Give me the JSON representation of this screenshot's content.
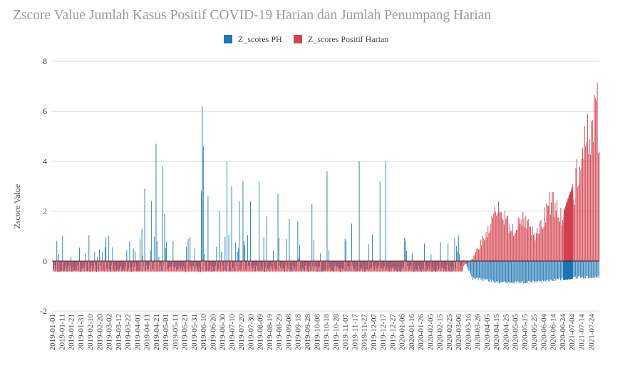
{
  "chart_data": {
    "type": "bar",
    "title": "Zscore Value Jumlah Kasus Positif COVID-19 Harian dan Jumlah Penumpang Harian",
    "xlabel": "",
    "ylabel": "Zscore Value",
    "ylim": [
      -2,
      8
    ],
    "yticks": [
      -2,
      0,
      2,
      4,
      6,
      8
    ],
    "grid": true,
    "legend_position": "top-center",
    "x_start": "2019-01-01",
    "x_end": "2021-07-31",
    "x_tick_labels": [
      "2019-01-01",
      "2019-01-11",
      "2019-01-21",
      "2019-01-31",
      "2019-02-10",
      "2019-02-20",
      "2019-03-02",
      "2019-03-12",
      "2019-03-22",
      "2019-04-01",
      "2019-04-11",
      "2019-04-21",
      "2019-05-01",
      "2019-05-11",
      "2019-05-21",
      "2019-05-31",
      "2019-06-10",
      "2019-06-20",
      "2019-06-30",
      "2019-07-10",
      "2019-07-20",
      "2019-07-30",
      "2019-08-09",
      "2019-08-19",
      "2019-08-29",
      "2019-09-08",
      "2019-09-18",
      "2019-09-28",
      "2019-10-08",
      "2019-10-18",
      "2019-10-28",
      "2019-11-07",
      "2019-11-17",
      "2019-11-27",
      "2019-12-07",
      "2019-12-17",
      "2019-12-27",
      "2020-01-06",
      "2020-01-16",
      "2020-01-26",
      "2020-02-05",
      "2020-02-15",
      "2020-02-25",
      "2020-03-06",
      "2020-03-16",
      "2020-03-26",
      "2020-04-05",
      "2020-04-15",
      "2020-04-25",
      "2020-05-05",
      "2020-05-15",
      "2020-05-25",
      "2020-06-04",
      "2020-06-14",
      "2020-06-24",
      "2021-07-04",
      "2021-07-14",
      "2021-07-24"
    ],
    "series": [
      {
        "name": "Z_scores PH",
        "color": "#1f77b4",
        "description_points": [
          {
            "x": "2019-01-05",
            "y": 0.82
          },
          {
            "x": "2019-02-17",
            "y": 0.18
          },
          {
            "x": "2019-03-05",
            "y": 0.55
          },
          {
            "x": "2019-03-27",
            "y": 0.5
          },
          {
            "x": "2019-04-05",
            "y": 1.3
          },
          {
            "x": "2019-04-08",
            "y": 2.9
          },
          {
            "x": "2019-04-15",
            "y": 2.4
          },
          {
            "x": "2019-04-20",
            "y": 4.7
          },
          {
            "x": "2019-04-27",
            "y": 3.8
          },
          {
            "x": "2019-04-29",
            "y": 1.9
          },
          {
            "x": "2019-06-07",
            "y": 2.8
          },
          {
            "x": "2019-06-08",
            "y": 6.2
          },
          {
            "x": "2019-06-09",
            "y": 4.6
          },
          {
            "x": "2019-06-14",
            "y": 2.6
          },
          {
            "x": "2019-06-26",
            "y": 2.0
          },
          {
            "x": "2019-07-04",
            "y": 4.0
          },
          {
            "x": "2019-07-09",
            "y": 3.0
          },
          {
            "x": "2019-07-17",
            "y": 2.4
          },
          {
            "x": "2019-07-21",
            "y": 3.2
          },
          {
            "x": "2019-07-29",
            "y": 2.4
          },
          {
            "x": "2019-08-07",
            "y": 3.2
          },
          {
            "x": "2019-08-15",
            "y": 1.8
          },
          {
            "x": "2019-08-27",
            "y": 2.7
          },
          {
            "x": "2019-09-08",
            "y": 1.7
          },
          {
            "x": "2019-09-17",
            "y": 1.6
          },
          {
            "x": "2019-10-02",
            "y": 2.3
          },
          {
            "x": "2019-10-18",
            "y": 3.6
          },
          {
            "x": "2019-11-13",
            "y": 1.5
          },
          {
            "x": "2019-11-21",
            "y": 4.0
          },
          {
            "x": "2019-12-13",
            "y": 3.2
          },
          {
            "x": "2019-12-19",
            "y": 4.0
          },
          {
            "x": "2020-01-29",
            "y": 0.7
          },
          {
            "x": "2020-03-03",
            "y": 0.6
          },
          {
            "x": "2020-03-20",
            "y": -0.7
          },
          {
            "x": "2020-04-20",
            "y": -0.85
          },
          {
            "x": "2020-05-20",
            "y": -0.85
          },
          {
            "x": "2020-06-25",
            "y": -0.7
          },
          {
            "x": "2021-07-31",
            "y": -0.65
          }
        ]
      },
      {
        "name": "Z_scores Positif Harian",
        "color": "#d3424f",
        "description_points": [
          {
            "x": "2019-01-01",
            "y": -0.42
          },
          {
            "x": "2020-03-01",
            "y": -0.42
          },
          {
            "x": "2020-03-20",
            "y": 0.1
          },
          {
            "x": "2020-04-05",
            "y": 1.3
          },
          {
            "x": "2020-04-16",
            "y": 2.2
          },
          {
            "x": "2020-05-01",
            "y": 1.2
          },
          {
            "x": "2020-05-15",
            "y": 1.7
          },
          {
            "x": "2020-05-25",
            "y": 1.0
          },
          {
            "x": "2020-06-10",
            "y": 2.4
          },
          {
            "x": "2020-06-24",
            "y": 1.6
          },
          {
            "x": "2021-07-04",
            "y": 2.5
          },
          {
            "x": "2021-07-14",
            "y": 4.7
          },
          {
            "x": "2021-07-24",
            "y": 5.1
          },
          {
            "x": "2021-07-28",
            "y": 6.5
          },
          {
            "x": "2021-07-31",
            "y": 4.7
          }
        ]
      }
    ]
  }
}
